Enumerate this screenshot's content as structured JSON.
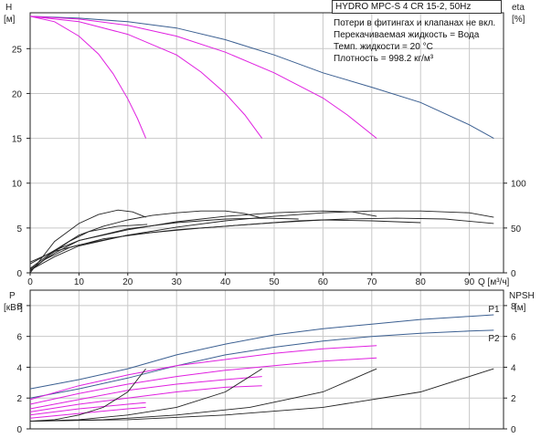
{
  "title": "HYDRO MPC-S 4 CR 15-2, 50Hz",
  "notes": [
    "Потери в фитингах и клапанах не вкл.",
    "Перекачиваемая жидкость = Вода",
    "Темп. жидкости = 20 °C",
    "Плотность = 998.2 кг/м³"
  ],
  "colors": {
    "pump_curve": "#e020e0",
    "system_curve": "#3b5f91",
    "efficiency": "#222222",
    "grid": "#c8c8c8"
  },
  "chart_data": [
    {
      "type": "line",
      "name": "top",
      "xlabel": "Q [м³/ч]",
      "ylabel_left": "H",
      "ylabel_left_unit": "[м]",
      "ylabel_right": "eta",
      "ylabel_right_unit": "[%]",
      "xlim": [
        0,
        97
      ],
      "ylim_left": [
        0,
        29
      ],
      "xticks": [
        0,
        10,
        20,
        30,
        40,
        50,
        60,
        70,
        80,
        90
      ],
      "yticks_left": [
        0,
        5,
        10,
        15,
        20,
        25
      ],
      "yticks_right": [
        0,
        50,
        100
      ],
      "head_curves": [
        {
          "pumps": 4,
          "color": "#3b5f91",
          "points": [
            [
              0,
              28.6
            ],
            [
              10,
              28.4
            ],
            [
              20,
              28.0
            ],
            [
              30,
              27.3
            ],
            [
              40,
              26.0
            ],
            [
              50,
              24.3
            ],
            [
              60,
              22.3
            ],
            [
              70,
              20.7
            ],
            [
              80,
              19.0
            ],
            [
              90,
              16.5
            ],
            [
              95,
              15.0
            ]
          ]
        },
        {
          "pumps": 3,
          "color": "#e020e0",
          "points": [
            [
              0,
              28.6
            ],
            [
              10,
              28.3
            ],
            [
              20,
              27.6
            ],
            [
              30,
              26.4
            ],
            [
              40,
              24.6
            ],
            [
              50,
              22.3
            ],
            [
              60,
              19.5
            ],
            [
              65,
              17.6
            ],
            [
              71,
              15.0
            ]
          ]
        },
        {
          "pumps": 2,
          "color": "#e020e0",
          "points": [
            [
              0,
              28.6
            ],
            [
              10,
              28.0
            ],
            [
              20,
              26.6
            ],
            [
              30,
              24.3
            ],
            [
              35,
              22.4
            ],
            [
              40,
              20.0
            ],
            [
              44,
              17.6
            ],
            [
              47.5,
              15.0
            ]
          ]
        },
        {
          "pumps": 1,
          "color": "#e020e0",
          "points": [
            [
              0,
              28.6
            ],
            [
              5,
              28.0
            ],
            [
              10,
              26.4
            ],
            [
              14,
              24.4
            ],
            [
              17,
              22.2
            ],
            [
              20,
              19.4
            ],
            [
              22,
              17.2
            ],
            [
              23.7,
              15.0
            ]
          ]
        }
      ],
      "efficiency_curves": [
        {
          "points": [
            [
              0,
              0
            ],
            [
              5,
              35
            ],
            [
              10,
              55
            ],
            [
              14,
              65
            ],
            [
              18,
              70
            ],
            [
              21,
              68
            ],
            [
              23.7,
              62
            ]
          ]
        },
        {
          "points": [
            [
              0,
              5
            ],
            [
              5,
              25
            ],
            [
              10,
              42
            ],
            [
              15,
              52
            ],
            [
              20,
              59
            ],
            [
              25,
              64
            ],
            [
              30,
              67
            ],
            [
              35,
              69
            ],
            [
              40,
              69
            ],
            [
              44,
              66
            ],
            [
              47.5,
              61
            ]
          ]
        },
        {
          "points": [
            [
              0,
              10
            ],
            [
              5,
              25
            ],
            [
              10,
              36
            ],
            [
              20,
              48
            ],
            [
              30,
              57
            ],
            [
              40,
              63
            ],
            [
              50,
              67
            ],
            [
              60,
              69
            ],
            [
              66,
              68
            ],
            [
              71,
              63
            ]
          ]
        },
        {
          "points": [
            [
              0,
              12
            ],
            [
              5,
              24
            ],
            [
              10,
              31
            ],
            [
              20,
              42
            ],
            [
              30,
              51
            ],
            [
              40,
              58
            ],
            [
              50,
              63
            ],
            [
              60,
              67
            ],
            [
              70,
              69
            ],
            [
              80,
              69
            ],
            [
              90,
              67
            ],
            [
              95,
              62
            ]
          ]
        },
        {
          "points": [
            [
              0,
              2
            ],
            [
              3,
              15
            ],
            [
              8,
              28
            ],
            [
              15,
              38
            ],
            [
              25,
              45
            ],
            [
              35,
              50
            ],
            [
              45,
              54
            ],
            [
              55,
              58
            ],
            [
              65,
              60
            ],
            [
              75,
              61
            ],
            [
              85,
              60
            ],
            [
              95,
              55
            ]
          ]
        },
        {
          "points": [
            [
              0,
              3
            ],
            [
              5,
              18
            ],
            [
              10,
              30
            ],
            [
              20,
              42
            ],
            [
              30,
              48
            ],
            [
              40,
              52
            ],
            [
              50,
              56
            ],
            [
              60,
              59
            ],
            [
              70,
              58
            ],
            [
              80,
              56
            ]
          ]
        },
        {
          "points": [
            [
              0,
              4
            ],
            [
              5,
              22
            ],
            [
              10,
              36
            ],
            [
              20,
              49
            ],
            [
              30,
              56
            ],
            [
              40,
              60
            ],
            [
              48,
              61
            ],
            [
              55,
              60
            ]
          ]
        },
        {
          "points": [
            [
              0,
              2
            ],
            [
              4,
              20
            ],
            [
              8,
              35
            ],
            [
              12,
              46
            ],
            [
              18,
              52
            ],
            [
              24,
              54
            ]
          ]
        }
      ]
    },
    {
      "type": "line",
      "name": "bottom",
      "ylabel_left": "P",
      "ylabel_left_unit": "[кВт]",
      "ylabel_right": "NPSH",
      "ylabel_right_unit": "[м]",
      "xlim": [
        0,
        97
      ],
      "ylim_left": [
        0,
        9
      ],
      "yticks_left": [
        0,
        2,
        4,
        6,
        8
      ],
      "yticks_right": [
        0,
        2,
        4,
        6,
        8
      ],
      "series_labels": [
        "P1",
        "P2"
      ],
      "power_curves": [
        {
          "label": "P1",
          "color": "#3b5f91",
          "points": [
            [
              0,
              2.6
            ],
            [
              10,
              3.2
            ],
            [
              20,
              3.9
            ],
            [
              30,
              4.8
            ],
            [
              40,
              5.5
            ],
            [
              50,
              6.1
            ],
            [
              60,
              6.5
            ],
            [
              70,
              6.8
            ],
            [
              80,
              7.1
            ],
            [
              90,
              7.3
            ],
            [
              95,
              7.4
            ]
          ]
        },
        {
          "label": "P2",
          "color": "#3b5f91",
          "points": [
            [
              0,
              2.0
            ],
            [
              10,
              2.6
            ],
            [
              20,
              3.3
            ],
            [
              30,
              4.1
            ],
            [
              40,
              4.8
            ],
            [
              50,
              5.3
            ],
            [
              60,
              5.7
            ],
            [
              70,
              6.0
            ],
            [
              80,
              6.2
            ],
            [
              90,
              6.35
            ],
            [
              95,
              6.4
            ]
          ]
        },
        {
          "color": "#e020e0",
          "points": [
            [
              0,
              1.9
            ],
            [
              10,
              2.8
            ],
            [
              20,
              3.5
            ],
            [
              30,
              4.1
            ],
            [
              40,
              4.5
            ],
            [
              50,
              4.9
            ],
            [
              60,
              5.2
            ],
            [
              71,
              5.4
            ]
          ]
        },
        {
          "color": "#e020e0",
          "points": [
            [
              0,
              1.6
            ],
            [
              10,
              2.3
            ],
            [
              20,
              2.9
            ],
            [
              30,
              3.4
            ],
            [
              40,
              3.8
            ],
            [
              50,
              4.1
            ],
            [
              60,
              4.4
            ],
            [
              71,
              4.6
            ]
          ]
        },
        {
          "color": "#e020e0",
          "points": [
            [
              0,
              1.3
            ],
            [
              10,
              1.9
            ],
            [
              20,
              2.5
            ],
            [
              30,
              2.9
            ],
            [
              40,
              3.2
            ],
            [
              47.5,
              3.4
            ]
          ]
        },
        {
          "color": "#e020e0",
          "points": [
            [
              0,
              1.1
            ],
            [
              10,
              1.6
            ],
            [
              20,
              2.0
            ],
            [
              30,
              2.4
            ],
            [
              40,
              2.7
            ],
            [
              47.5,
              2.8
            ]
          ]
        },
        {
          "color": "#e020e0",
          "points": [
            [
              0,
              0.9
            ],
            [
              10,
              1.3
            ],
            [
              20,
              1.6
            ],
            [
              23.7,
              1.7
            ]
          ]
        },
        {
          "color": "#e020e0",
          "points": [
            [
              0,
              0.7
            ],
            [
              10,
              1.0
            ],
            [
              20,
              1.3
            ],
            [
              23.7,
              1.4
            ]
          ]
        }
      ],
      "npsh_curves": [
        {
          "points": [
            [
              0,
              0.5
            ],
            [
              5,
              0.6
            ],
            [
              10,
              0.9
            ],
            [
              15,
              1.4
            ],
            [
              20,
              2.4
            ],
            [
              23.7,
              3.9
            ]
          ]
        },
        {
          "points": [
            [
              0,
              0.5
            ],
            [
              10,
              0.6
            ],
            [
              20,
              0.9
            ],
            [
              30,
              1.4
            ],
            [
              40,
              2.4
            ],
            [
              47.5,
              3.9
            ]
          ]
        },
        {
          "points": [
            [
              0,
              0.5
            ],
            [
              15,
              0.6
            ],
            [
              30,
              0.9
            ],
            [
              45,
              1.4
            ],
            [
              60,
              2.4
            ],
            [
              71,
              3.9
            ]
          ]
        },
        {
          "points": [
            [
              0,
              0.5
            ],
            [
              20,
              0.6
            ],
            [
              40,
              0.9
            ],
            [
              60,
              1.4
            ],
            [
              80,
              2.4
            ],
            [
              95,
              3.9
            ]
          ]
        }
      ]
    }
  ]
}
